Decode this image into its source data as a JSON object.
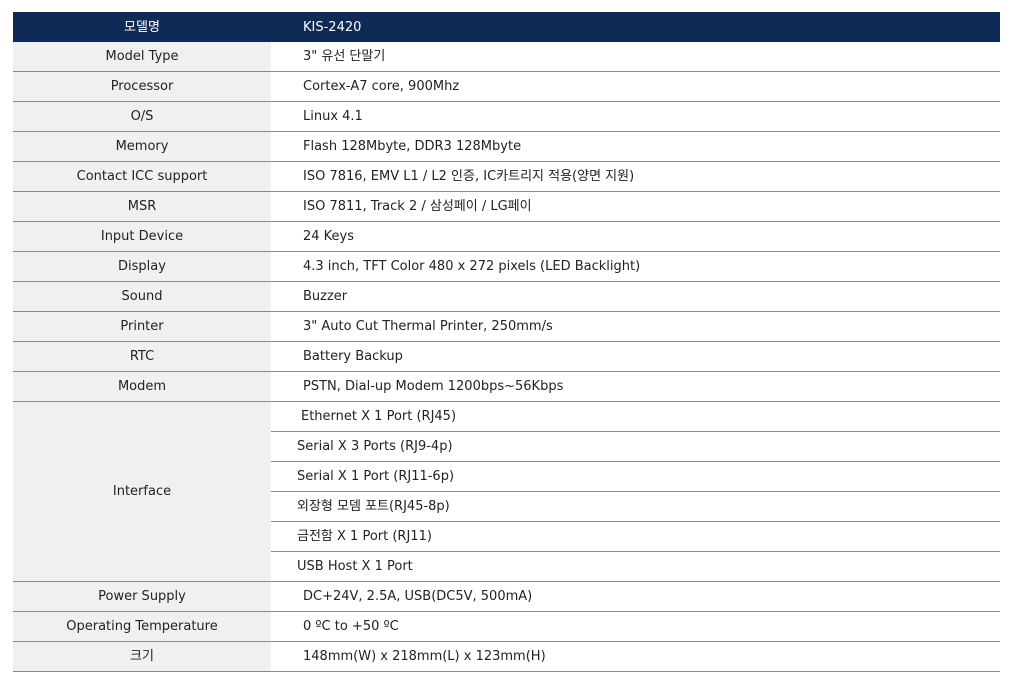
{
  "header": {
    "label": "모델명",
    "value": "KIS-2420"
  },
  "rows": [
    {
      "label": "Model Type",
      "value": "3\" 유선 단말기"
    },
    {
      "label": "Processor",
      "value": "Cortex-A7 core, 900Mhz"
    },
    {
      "label": "O/S",
      "value": "Linux 4.1"
    },
    {
      "label": "Memory",
      "value": "Flash 128Mbyte, DDR3 128Mbyte"
    },
    {
      "label": "Contact ICC support",
      "value": "ISO 7816, EMV L1 / L2 인증, IC카트리지 적용(양면 지원)"
    },
    {
      "label": "MSR",
      "value": "ISO 7811, Track 2 / 삼성페이 / LG페이"
    },
    {
      "label": "Input Device",
      "value": "24 Keys"
    },
    {
      "label": "Display",
      "value": "4.3 inch, TFT Color 480 x 272 pixels (LED Backlight)"
    },
    {
      "label": "Sound",
      "value": "Buzzer"
    },
    {
      "label": "Printer",
      "value": "3\" Auto Cut Thermal Printer, 250mm/s"
    },
    {
      "label": "RTC",
      "value": "Battery Backup"
    },
    {
      "label": "Modem",
      "value": "PSTN, Dial-up Modem 1200bps~56Kbps"
    }
  ],
  "interface": {
    "label": "Interface",
    "items": [
      "Ethernet X 1 Port (RJ45)",
      "Serial X 3 Ports (RJ9-4p)",
      "Serial X 1 Port (RJ11-6p)",
      "외장형 모뎀 포트(RJ45-8p)",
      "금전함 X 1 Port (RJ11)",
      "USB Host X 1 Port"
    ]
  },
  "tail_rows": [
    {
      "label": "Power Supply",
      "value": "DC+24V, 2.5A, USB(DC5V, 500mA)"
    },
    {
      "label": "Operating Temperature",
      "value": "0 ºC to +50 ºC"
    },
    {
      "label": "크기",
      "value": "148mm(W) x 218mm(L) x 123mm(H)"
    }
  ]
}
